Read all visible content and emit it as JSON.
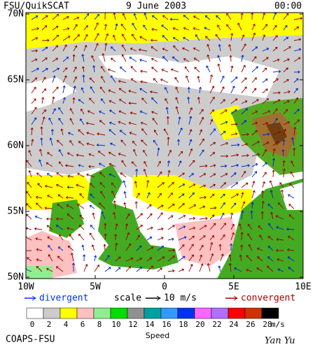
{
  "header": {
    "title": "FSU/QuikSCAT",
    "date": "9 June 2003",
    "time": "00:00"
  },
  "map": {
    "lat_labels": [
      "70N",
      "65N",
      "60N",
      "55N",
      "50N"
    ],
    "lon_labels": [
      "10W",
      "5W",
      "0",
      "5E",
      "10E"
    ]
  },
  "legend": {
    "divergent": "divergent",
    "scale": "scale",
    "scale_value": "10 m/s",
    "convergent": "convergent"
  },
  "colorbar": {
    "labels": [
      "0",
      "2",
      "4",
      "6",
      "8",
      "10",
      "12",
      "14",
      "16",
      "18",
      "20",
      "22",
      "24",
      "26",
      "28"
    ],
    "unit": "m/s",
    "title": "Speed",
    "colors": [
      "#ffffff",
      "#cccccc",
      "#ffff00",
      "#ffc0c0",
      "#90ee90",
      "#00dd00",
      "#909090",
      "#00a0a0",
      "#3399ff",
      "#0033ee",
      "#ff66ff",
      "#b070ff",
      "#ff0000",
      "#cc3300",
      "#000000"
    ]
  },
  "footer": {
    "source": "COAPS-FSU",
    "author": "Yan Yu"
  }
}
